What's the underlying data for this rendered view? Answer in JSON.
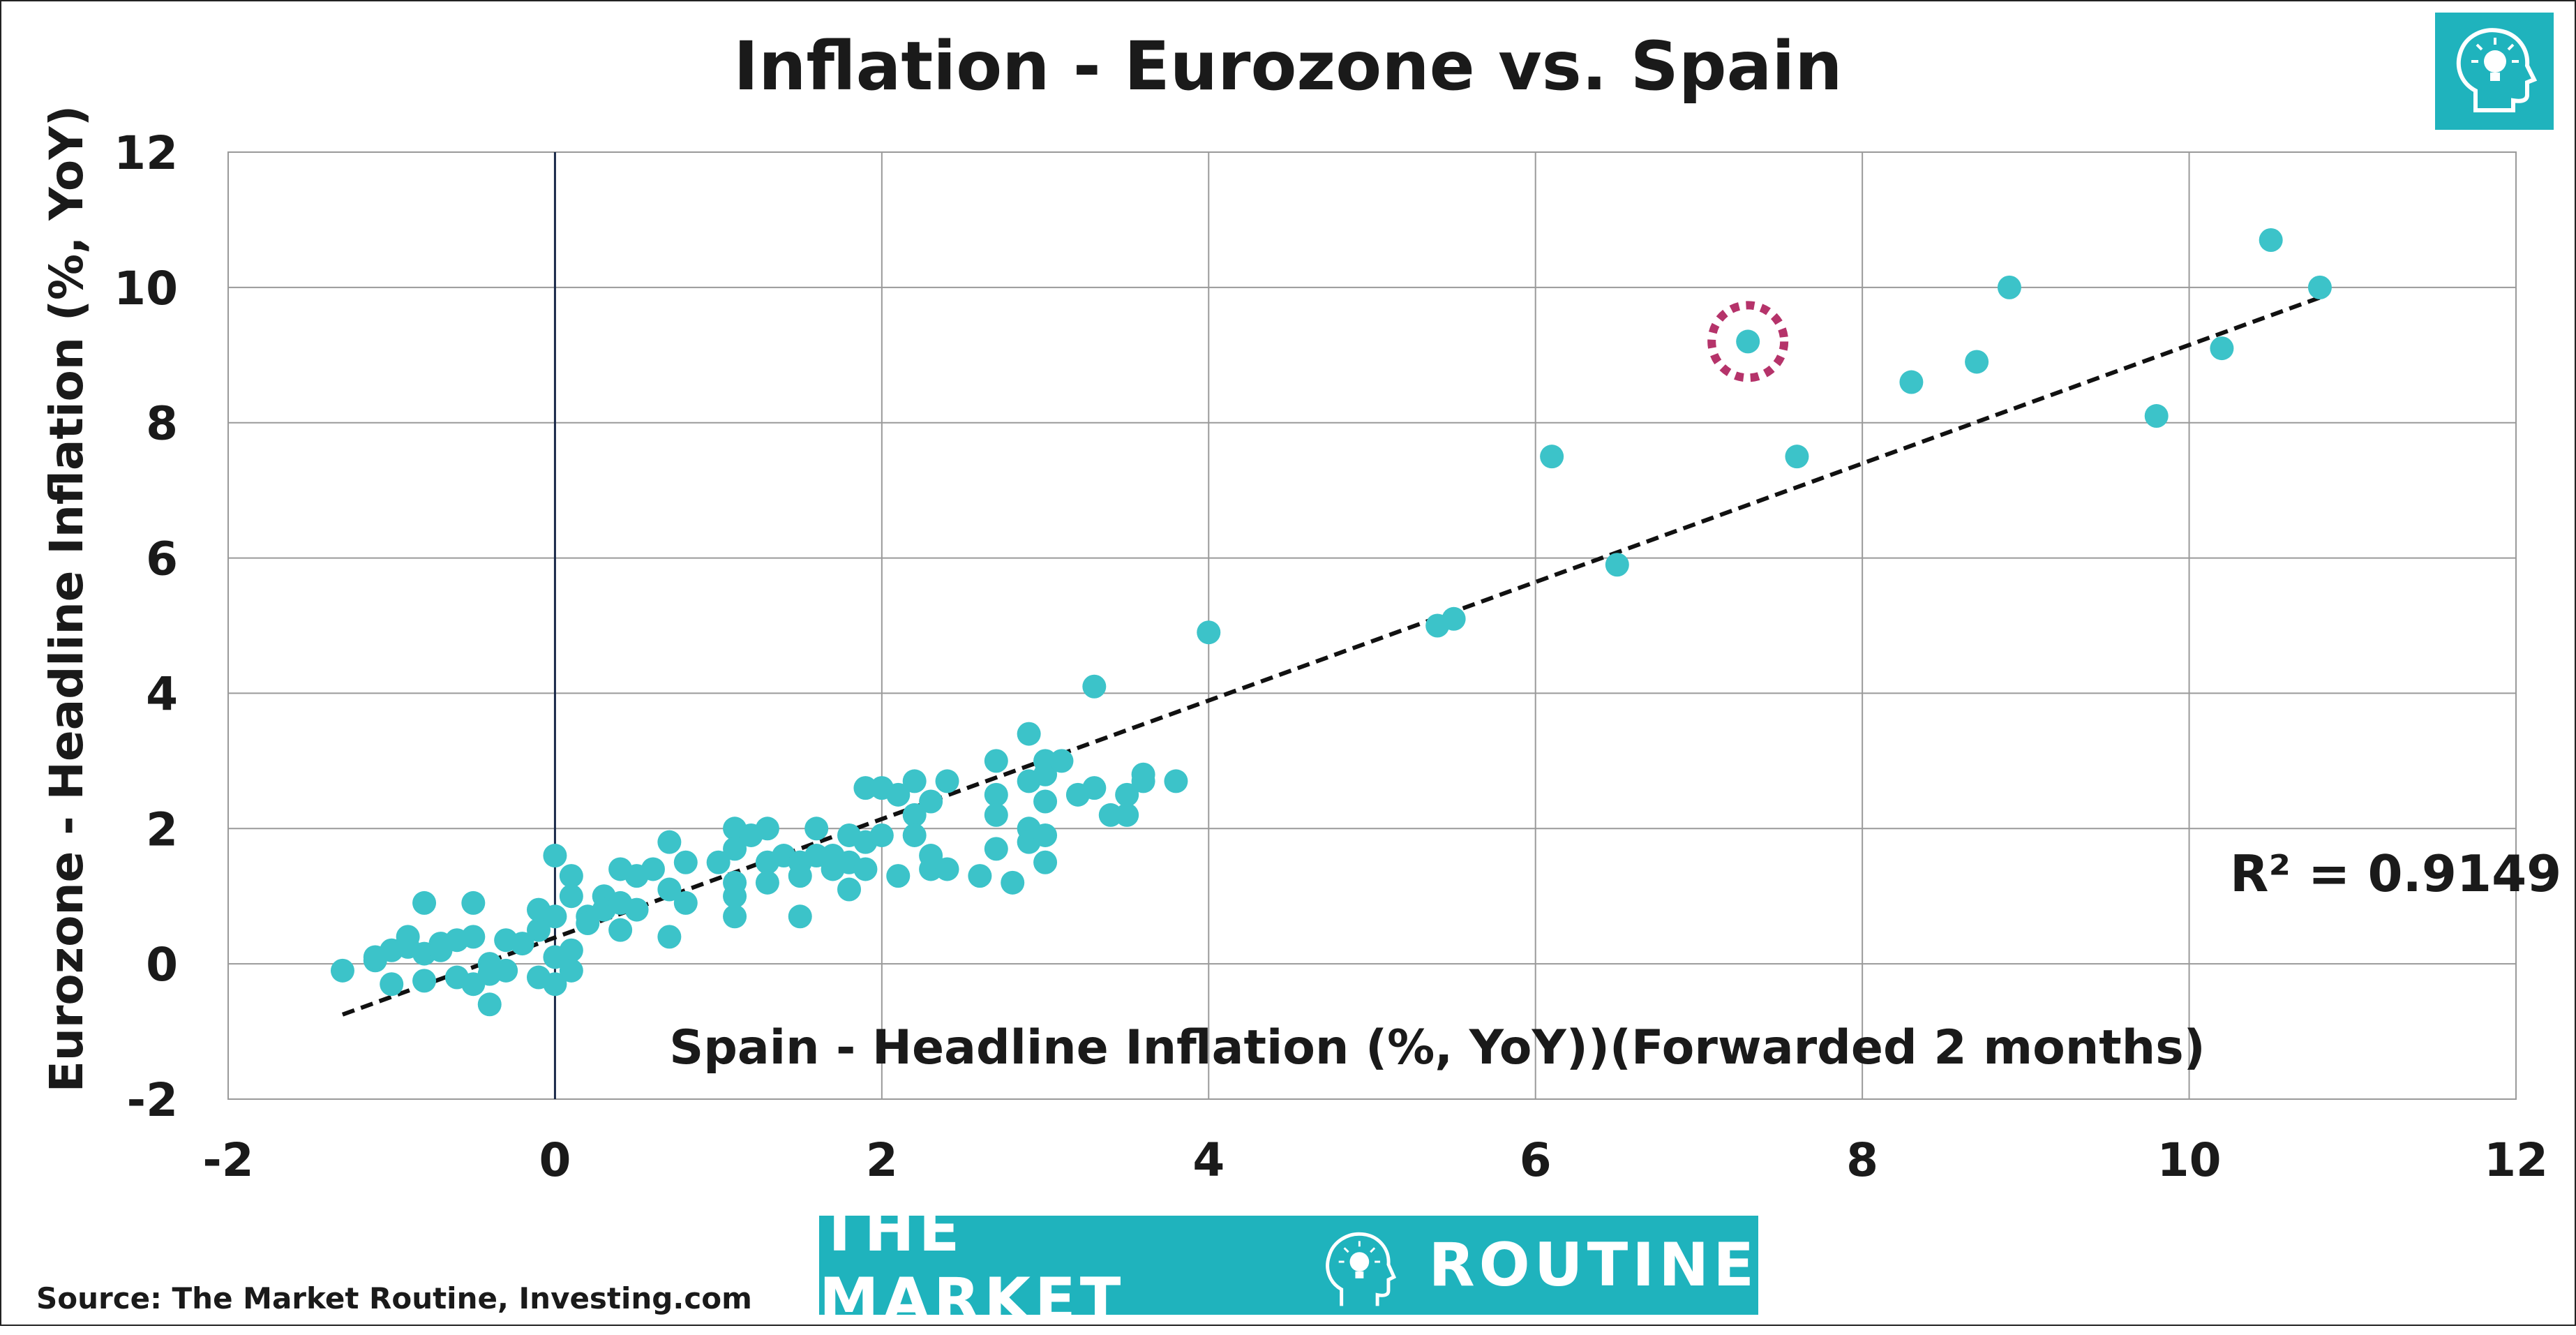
{
  "chart_data": {
    "type": "scatter",
    "title": "Inflation - Eurozone vs. Spain",
    "xlabel": "Spain - Headline Inflation (%, YoY))(Forwarded 2 months)",
    "ylabel": "Eurozone - Headline Inflation (%, YoY)",
    "xlim": [
      -2,
      12
    ],
    "ylim": [
      -2,
      12
    ],
    "xticks": [
      "-2",
      "0",
      "2",
      "4",
      "6",
      "8",
      "10",
      "12"
    ],
    "yticks": [
      "-2",
      "0",
      "2",
      "4",
      "6",
      "8",
      "10",
      "12"
    ],
    "grid": true,
    "point_color": "#3cc3c9",
    "trendline": {
      "style": "dashed",
      "from": [
        -1.3,
        -0.75
      ],
      "to": [
        10.8,
        9.85
      ]
    },
    "r_squared_label": "R² = 0.9149",
    "highlighted_point": [
      7.3,
      9.2
    ],
    "highlight_color": "#b5336a",
    "points": [
      [
        -1.3,
        -0.1
      ],
      [
        -1.1,
        0.05
      ],
      [
        -1.1,
        0.1
      ],
      [
        -1.0,
        0.2
      ],
      [
        -1.0,
        -0.3
      ],
      [
        -0.9,
        0.4
      ],
      [
        -0.9,
        0.25
      ],
      [
        -0.8,
        0.9
      ],
      [
        -0.8,
        0.15
      ],
      [
        -0.8,
        -0.25
      ],
      [
        -0.7,
        0.3
      ],
      [
        -0.7,
        0.2
      ],
      [
        -0.6,
        0.35
      ],
      [
        -0.6,
        -0.2
      ],
      [
        -0.5,
        0.9
      ],
      [
        -0.5,
        0.4
      ],
      [
        -0.5,
        -0.3
      ],
      [
        -0.4,
        0.0
      ],
      [
        -0.4,
        -0.6
      ],
      [
        -0.4,
        -0.15
      ],
      [
        -0.3,
        0.35
      ],
      [
        -0.3,
        -0.1
      ],
      [
        -0.2,
        0.3
      ],
      [
        -0.1,
        0.5
      ],
      [
        -0.1,
        -0.2
      ],
      [
        -0.1,
        0.8
      ],
      [
        0.0,
        0.7
      ],
      [
        0.0,
        0.1
      ],
      [
        0.0,
        -0.3
      ],
      [
        0.0,
        1.6
      ],
      [
        0.1,
        1.3
      ],
      [
        0.1,
        1.0
      ],
      [
        0.1,
        0.2
      ],
      [
        0.1,
        -0.1
      ],
      [
        0.2,
        0.7
      ],
      [
        0.2,
        0.6
      ],
      [
        0.3,
        1.0
      ],
      [
        0.3,
        0.8
      ],
      [
        0.4,
        1.4
      ],
      [
        0.4,
        0.9
      ],
      [
        0.4,
        0.5
      ],
      [
        0.5,
        1.3
      ],
      [
        0.5,
        0.8
      ],
      [
        0.6,
        1.4
      ],
      [
        0.7,
        1.8
      ],
      [
        0.7,
        1.1
      ],
      [
        0.7,
        0.4
      ],
      [
        0.8,
        1.5
      ],
      [
        0.8,
        0.9
      ],
      [
        1.0,
        1.5
      ],
      [
        1.1,
        2.0
      ],
      [
        1.1,
        1.7
      ],
      [
        1.1,
        1.2
      ],
      [
        1.1,
        1.0
      ],
      [
        1.1,
        0.7
      ],
      [
        1.2,
        1.9
      ],
      [
        1.3,
        2.0
      ],
      [
        1.3,
        1.5
      ],
      [
        1.3,
        1.2
      ],
      [
        1.4,
        1.6
      ],
      [
        1.5,
        1.5
      ],
      [
        1.5,
        1.3
      ],
      [
        1.5,
        0.7
      ],
      [
        1.6,
        2.0
      ],
      [
        1.6,
        1.6
      ],
      [
        1.7,
        1.4
      ],
      [
        1.7,
        1.6
      ],
      [
        1.8,
        1.9
      ],
      [
        1.8,
        1.5
      ],
      [
        1.8,
        1.1
      ],
      [
        1.9,
        2.6
      ],
      [
        1.9,
        1.8
      ],
      [
        1.9,
        1.4
      ],
      [
        2.0,
        2.6
      ],
      [
        2.0,
        1.9
      ],
      [
        2.1,
        2.5
      ],
      [
        2.1,
        1.3
      ],
      [
        2.2,
        2.7
      ],
      [
        2.2,
        2.2
      ],
      [
        2.2,
        1.9
      ],
      [
        2.3,
        2.4
      ],
      [
        2.3,
        1.6
      ],
      [
        2.3,
        1.4
      ],
      [
        2.4,
        2.7
      ],
      [
        2.4,
        1.4
      ],
      [
        2.6,
        1.3
      ],
      [
        2.7,
        3.0
      ],
      [
        2.7,
        2.5
      ],
      [
        2.7,
        2.2
      ],
      [
        2.7,
        1.7
      ],
      [
        2.8,
        1.2
      ],
      [
        2.9,
        3.4
      ],
      [
        2.9,
        2.7
      ],
      [
        2.9,
        2.0
      ],
      [
        2.9,
        1.8
      ],
      [
        3.0,
        3.0
      ],
      [
        3.0,
        2.8
      ],
      [
        3.0,
        2.4
      ],
      [
        3.0,
        1.9
      ],
      [
        3.0,
        1.5
      ],
      [
        3.1,
        3.0
      ],
      [
        3.2,
        2.5
      ],
      [
        3.3,
        4.1
      ],
      [
        3.3,
        2.6
      ],
      [
        3.4,
        2.2
      ],
      [
        3.5,
        2.5
      ],
      [
        3.5,
        2.2
      ],
      [
        3.6,
        2.8
      ],
      [
        3.6,
        2.7
      ],
      [
        3.8,
        2.7
      ],
      [
        4.0,
        4.9
      ],
      [
        5.4,
        5.0
      ],
      [
        5.5,
        5.1
      ],
      [
        6.1,
        7.5
      ],
      [
        6.5,
        5.9
      ],
      [
        7.3,
        9.2
      ],
      [
        7.6,
        7.5
      ],
      [
        8.3,
        8.6
      ],
      [
        8.7,
        8.9
      ],
      [
        8.9,
        10.0
      ],
      [
        9.8,
        8.1
      ],
      [
        10.2,
        9.1
      ],
      [
        10.5,
        10.7
      ],
      [
        10.8,
        10.0
      ]
    ]
  },
  "branding": {
    "logo_left": "THE MARKET",
    "logo_right": "ROUTINE",
    "brand_color": "#1fb3bd",
    "logo_icon": "head-lightbulb-icon"
  },
  "source": "Source: The Market Routine, Investing.com"
}
